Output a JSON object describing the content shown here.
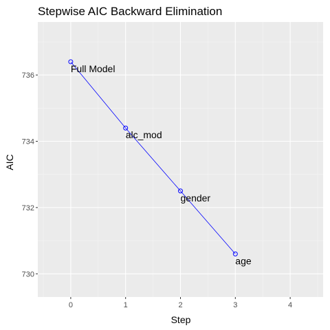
{
  "chart_data": {
    "type": "line",
    "title": "Stepwise AIC Backward Elimination",
    "xlabel": "Step",
    "ylabel": "AIC",
    "xlim": [
      -0.6,
      4.6
    ],
    "ylim": [
      729.3,
      737.6
    ],
    "x_ticks": [
      0,
      1,
      2,
      3,
      4
    ],
    "y_ticks": [
      730,
      732,
      734,
      736
    ],
    "grid": true,
    "legend": "none",
    "series": [
      {
        "x": [
          0,
          1,
          2,
          3
        ],
        "y": [
          736.4,
          734.4,
          732.5,
          730.6
        ],
        "labels": [
          "Full Model",
          "alc_mod",
          "gender",
          "age"
        ]
      }
    ],
    "colors": {
      "line": "#0000FF",
      "panel": "#EBEBEB",
      "grid_major": "#FFFFFF",
      "grid_minor": "#F5F5F5",
      "tick": "#333333"
    }
  }
}
